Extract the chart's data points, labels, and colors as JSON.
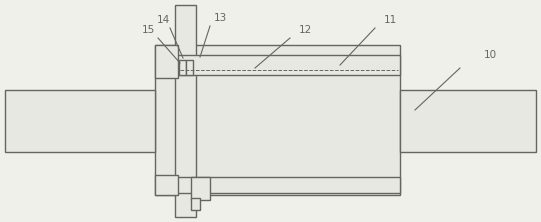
{
  "bg_color": "#f0f0eb",
  "line_color": "#666660",
  "fill_color": "#e8e8e2",
  "lw": 1.0,
  "fig_width": 5.41,
  "fig_height": 2.22,
  "dpi": 100
}
